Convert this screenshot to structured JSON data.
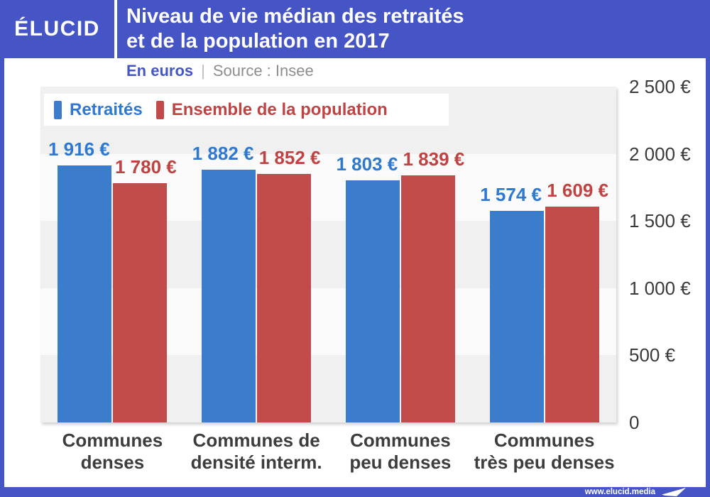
{
  "header": {
    "logo": "ÉLUCID",
    "title_line1": "Niveau de vie médian des retraités",
    "title_line2": "et de la population en 2017"
  },
  "subtitle": {
    "unit": "En euros",
    "separator": "|",
    "source": "Source : Insee"
  },
  "legend": {
    "items": [
      {
        "label": "Retraités"
      },
      {
        "label": "Ensemble de la population"
      }
    ]
  },
  "chart_data": {
    "type": "bar",
    "title": "Niveau de vie médian des retraités et de la population en 2017",
    "unit": "euros",
    "source": "Insee",
    "categories": [
      "Communes denses",
      "Communes de densité interm.",
      "Communes peu denses",
      "Communes très peu denses"
    ],
    "categories_lines": [
      [
        "Communes",
        "denses"
      ],
      [
        "Communes de",
        "densité interm."
      ],
      [
        "Communes",
        "peu denses"
      ],
      [
        "Communes",
        "très peu denses"
      ]
    ],
    "series": [
      {
        "name": "Retraités",
        "bar_color": "#3b7ccd",
        "label_color": "#2e79cf",
        "values": [
          1916,
          1882,
          1803,
          1574
        ],
        "labels": [
          "1 916 €",
          "1 882 €",
          "1 803 €",
          "1 574 €"
        ]
      },
      {
        "name": "Ensemble de la population",
        "bar_color": "#c14b4b",
        "label_color": "#bf4343",
        "values": [
          1780,
          1852,
          1839,
          1609
        ],
        "labels": [
          "1 780 €",
          "1 852 €",
          "1 839 €",
          "1 609 €"
        ]
      }
    ],
    "ylim": [
      0,
      2500
    ],
    "yticks": [
      {
        "value": 2500,
        "label": "2 500 €"
      },
      {
        "value": 2000,
        "label": "2 000 €"
      },
      {
        "value": 1500,
        "label": "1 500 €"
      },
      {
        "value": 1000,
        "label": "1 000 €"
      },
      {
        "value": 500,
        "label": "500 €"
      },
      {
        "value": 0,
        "label": "0"
      }
    ],
    "legend_position": "top-left",
    "grid": "banded"
  },
  "footer": {
    "url": "www.elucid.media"
  },
  "colors": {
    "brand_blue": "#4555c6",
    "bar_blue": "#3b7ccd",
    "bar_red": "#c14b4b",
    "text_blue": "#2e79cf",
    "text_red": "#bf4343",
    "band_gray": "#f0f0f1",
    "band_light": "#fafafa"
  }
}
